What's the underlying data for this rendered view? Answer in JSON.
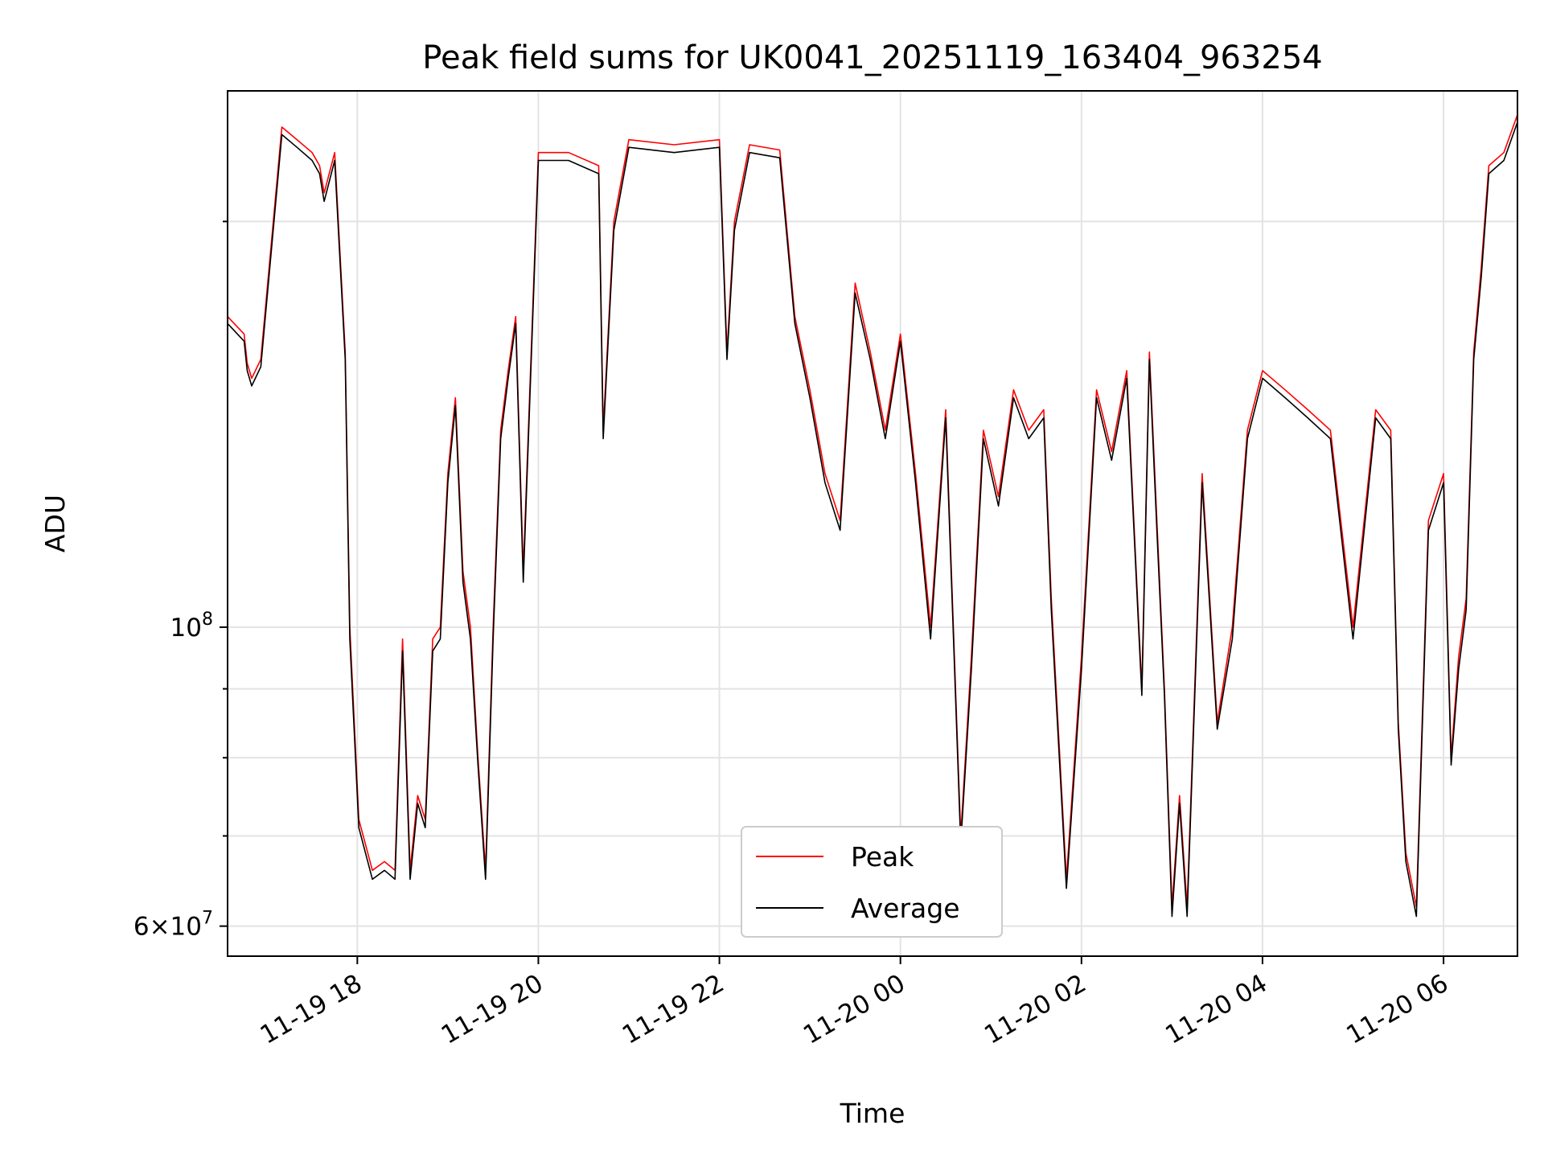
{
  "chart_data": {
    "type": "line",
    "title": "Peak field sums for UK0041_20251119_163404_963254",
    "xlabel": "Time",
    "ylabel": "ADU",
    "y_scale": "log",
    "ylim": [
      57000000,
      250000000
    ],
    "xlim": [
      "2025-11-19T16:34",
      "2025-11-20T06:49"
    ],
    "grid": true,
    "legend_position": "lower-center",
    "x_ticks": [
      {
        "value": "2025-11-19T18:00",
        "label": "11-19 18"
      },
      {
        "value": "2025-11-19T20:00",
        "label": "11-19 20"
      },
      {
        "value": "2025-11-19T22:00",
        "label": "11-19 22"
      },
      {
        "value": "2025-11-20T00:00",
        "label": "11-20 00"
      },
      {
        "value": "2025-11-20T02:00",
        "label": "11-20 02"
      },
      {
        "value": "2025-11-20T04:00",
        "label": "11-20 04"
      },
      {
        "value": "2025-11-20T06:00",
        "label": "11-20 06"
      }
    ],
    "y_ticks": [
      {
        "value": 100000000,
        "base": "10",
        "exp": "8"
      },
      {
        "value": 60000000,
        "mantissa": "6",
        "base": "10",
        "exp": "7"
      }
    ],
    "y_minor_ticks": [
      70000000,
      80000000,
      90000000,
      200000000
    ],
    "x": [
      "2025-11-19T16:34",
      "2025-11-19T16:45",
      "2025-11-19T16:47",
      "2025-11-19T16:50",
      "2025-11-19T16:56",
      "2025-11-19T17:10",
      "2025-11-19T17:20",
      "2025-11-19T17:30",
      "2025-11-19T17:35",
      "2025-11-19T17:38",
      "2025-11-19T17:45",
      "2025-11-19T17:52",
      "2025-11-19T17:55",
      "2025-11-19T18:01",
      "2025-11-19T18:10",
      "2025-11-19T18:18",
      "2025-11-19T18:25",
      "2025-11-19T18:30",
      "2025-11-19T18:35",
      "2025-11-19T18:40",
      "2025-11-19T18:45",
      "2025-11-19T18:50",
      "2025-11-19T18:55",
      "2025-11-19T19:00",
      "2025-11-19T19:05",
      "2025-11-19T19:10",
      "2025-11-19T19:15",
      "2025-11-19T19:20",
      "2025-11-19T19:25",
      "2025-11-19T19:30",
      "2025-11-19T19:35",
      "2025-11-19T19:40",
      "2025-11-19T19:45",
      "2025-11-19T19:50",
      "2025-11-19T20:00",
      "2025-11-19T20:20",
      "2025-11-19T20:40",
      "2025-11-19T20:43",
      "2025-11-19T20:50",
      "2025-11-19T21:00",
      "2025-11-19T21:30",
      "2025-11-19T22:00",
      "2025-11-19T22:05",
      "2025-11-19T22:10",
      "2025-11-19T22:20",
      "2025-11-19T22:40",
      "2025-11-19T22:50",
      "2025-11-19T23:00",
      "2025-11-19T23:10",
      "2025-11-19T23:20",
      "2025-11-19T23:30",
      "2025-11-19T23:40",
      "2025-11-19T23:50",
      "2025-11-20T00:00",
      "2025-11-20T00:10",
      "2025-11-20T00:20",
      "2025-11-20T00:30",
      "2025-11-20T00:40",
      "2025-11-20T00:47",
      "2025-11-20T00:55",
      "2025-11-20T01:05",
      "2025-11-20T01:15",
      "2025-11-20T01:25",
      "2025-11-20T01:35",
      "2025-11-20T01:40",
      "2025-11-20T01:50",
      "2025-11-20T02:00",
      "2025-11-20T02:10",
      "2025-11-20T02:20",
      "2025-11-20T02:30",
      "2025-11-20T02:40",
      "2025-11-20T02:45",
      "2025-11-20T02:50",
      "2025-11-20T02:55",
      "2025-11-20T03:00",
      "2025-11-20T03:05",
      "2025-11-20T03:10",
      "2025-11-20T03:20",
      "2025-11-20T03:30",
      "2025-11-20T03:40",
      "2025-11-20T03:50",
      "2025-11-20T04:00",
      "2025-11-20T04:15",
      "2025-11-20T04:30",
      "2025-11-20T04:45",
      "2025-11-20T05:00",
      "2025-11-20T05:15",
      "2025-11-20T05:25",
      "2025-11-20T05:30",
      "2025-11-20T05:35",
      "2025-11-20T05:42",
      "2025-11-20T05:50",
      "2025-11-20T06:00",
      "2025-11-20T06:05",
      "2025-11-20T06:10",
      "2025-11-20T06:15",
      "2025-11-20T06:20",
      "2025-11-20T06:25",
      "2025-11-20T06:30",
      "2025-11-20T06:40",
      "2025-11-20T06:49"
    ],
    "series": [
      {
        "name": "Peak",
        "color": "#ff0000",
        "values": [
          170000000,
          165000000,
          157000000,
          153000000,
          158000000,
          235000000,
          230000000,
          225000000,
          220000000,
          210000000,
          225000000,
          160000000,
          100000000,
          72000000,
          66000000,
          67000000,
          66000000,
          98000000,
          66000000,
          75000000,
          72000000,
          98000000,
          100000000,
          130000000,
          148000000,
          110000000,
          100000000,
          80000000,
          66000000,
          100000000,
          140000000,
          155000000,
          170000000,
          110000000,
          225000000,
          225000000,
          220000000,
          140000000,
          200000000,
          230000000,
          228000000,
          230000000,
          160000000,
          200000000,
          228000000,
          226000000,
          170000000,
          150000000,
          130000000,
          120000000,
          180000000,
          160000000,
          140000000,
          165000000,
          130000000,
          100000000,
          145000000,
          70000000,
          95000000,
          140000000,
          125000000,
          150000000,
          140000000,
          145000000,
          105000000,
          65000000,
          95000000,
          150000000,
          135000000,
          155000000,
          90000000,
          160000000,
          120000000,
          90000000,
          62000000,
          75000000,
          62000000,
          130000000,
          85000000,
          100000000,
          140000000,
          155000000,
          150000000,
          145000000,
          140000000,
          100000000,
          145000000,
          140000000,
          85000000,
          68000000,
          62000000,
          120000000,
          130000000,
          80000000,
          95000000,
          105000000,
          160000000,
          185000000,
          220000000,
          225000000,
          240000000
        ]
      },
      {
        "name": "Average",
        "color": "#000000",
        "values": [
          168000000,
          163000000,
          155000000,
          151000000,
          156000000,
          232000000,
          227000000,
          222000000,
          217000000,
          207000000,
          222000000,
          158000000,
          98000000,
          71000000,
          65000000,
          66000000,
          65000000,
          96000000,
          65000000,
          74000000,
          71000000,
          96000000,
          98000000,
          128000000,
          146000000,
          108000000,
          98000000,
          79000000,
          65000000,
          98000000,
          138000000,
          153000000,
          168000000,
          108000000,
          222000000,
          222000000,
          217000000,
          138000000,
          197000000,
          227000000,
          225000000,
          227000000,
          158000000,
          197000000,
          225000000,
          223000000,
          168000000,
          148000000,
          128000000,
          118000000,
          177000000,
          158000000,
          138000000,
          163000000,
          128000000,
          98000000,
          143000000,
          69000000,
          93000000,
          138000000,
          123000000,
          148000000,
          138000000,
          143000000,
          103000000,
          64000000,
          93000000,
          148000000,
          133000000,
          153000000,
          89000000,
          158000000,
          118000000,
          89000000,
          61000000,
          74000000,
          61000000,
          128000000,
          84000000,
          98000000,
          138000000,
          153000000,
          148000000,
          143000000,
          138000000,
          98000000,
          143000000,
          138000000,
          84000000,
          67000000,
          61000000,
          118000000,
          128000000,
          79000000,
          93000000,
          103000000,
          158000000,
          182000000,
          217000000,
          222000000,
          237000000
        ]
      }
    ]
  }
}
